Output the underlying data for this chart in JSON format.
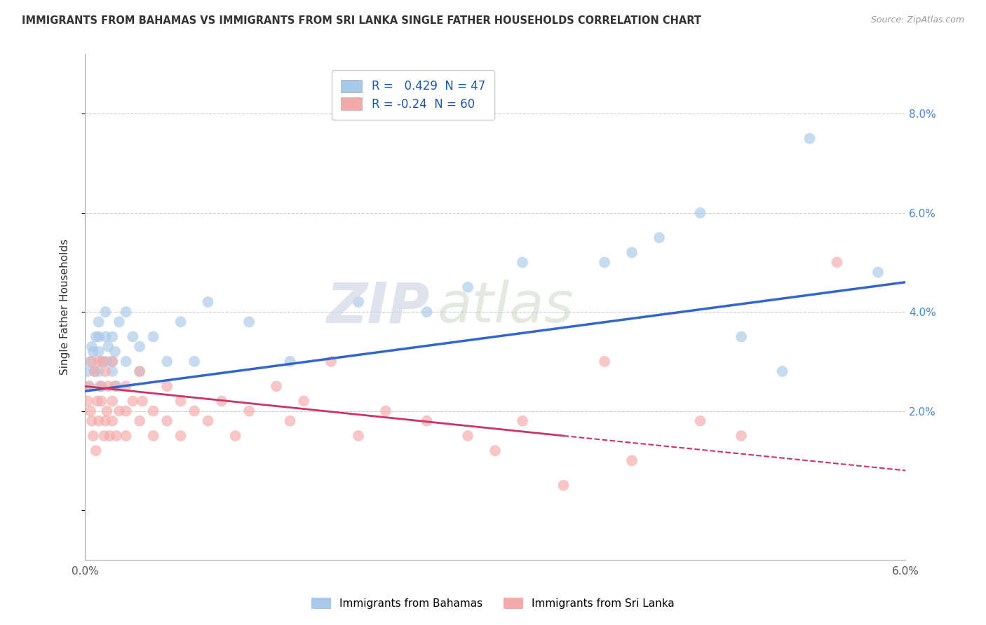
{
  "title": "IMMIGRANTS FROM BAHAMAS VS IMMIGRANTS FROM SRI LANKA SINGLE FATHER HOUSEHOLDS CORRELATION CHART",
  "source": "Source: ZipAtlas.com",
  "ylabel": "Single Father Households",
  "xlim": [
    0.0,
    0.06
  ],
  "ylim": [
    -0.01,
    0.092
  ],
  "xticks": [
    0.0,
    0.06
  ],
  "xticklabels": [
    "0.0%",
    "6.0%"
  ],
  "yticks": [
    0.0,
    0.02,
    0.04,
    0.06,
    0.08
  ],
  "yticklabels": [
    "",
    "2.0%",
    "4.0%",
    "6.0%",
    "8.0%"
  ],
  "blue_R": 0.429,
  "blue_N": 47,
  "pink_R": -0.24,
  "pink_N": 60,
  "blue_color": "#a8c8e8",
  "pink_color": "#f4aaaa",
  "blue_line_color": "#3366cc",
  "pink_line_color": "#cc3366",
  "legend1_label": "Immigrants from Bahamas",
  "legend2_label": "Immigrants from Sri Lanka",
  "watermark_zip": "ZIP",
  "watermark_atlas": "atlas",
  "blue_line_x0": 0.0,
  "blue_line_y0": 0.024,
  "blue_line_x1": 0.06,
  "blue_line_y1": 0.046,
  "pink_line_solid_x0": 0.0,
  "pink_line_solid_y0": 0.025,
  "pink_line_solid_x1": 0.035,
  "pink_line_solid_y1": 0.015,
  "pink_line_dash_x0": 0.035,
  "pink_line_dash_y0": 0.015,
  "pink_line_dash_x1": 0.06,
  "pink_line_dash_y1": 0.008,
  "blue_scatter_x": [
    0.0002,
    0.0003,
    0.0004,
    0.0005,
    0.0006,
    0.0007,
    0.0008,
    0.001,
    0.001,
    0.001,
    0.001,
    0.0012,
    0.0013,
    0.0015,
    0.0015,
    0.0016,
    0.0017,
    0.002,
    0.002,
    0.002,
    0.0022,
    0.0023,
    0.0025,
    0.003,
    0.003,
    0.0035,
    0.004,
    0.004,
    0.005,
    0.006,
    0.007,
    0.008,
    0.009,
    0.012,
    0.015,
    0.02,
    0.025,
    0.028,
    0.032,
    0.038,
    0.04,
    0.042,
    0.045,
    0.048,
    0.051,
    0.053,
    0.058
  ],
  "blue_scatter_y": [
    0.028,
    0.025,
    0.03,
    0.033,
    0.032,
    0.028,
    0.035,
    0.038,
    0.032,
    0.035,
    0.028,
    0.025,
    0.03,
    0.04,
    0.035,
    0.03,
    0.033,
    0.03,
    0.035,
    0.028,
    0.032,
    0.025,
    0.038,
    0.03,
    0.04,
    0.035,
    0.028,
    0.033,
    0.035,
    0.03,
    0.038,
    0.03,
    0.042,
    0.038,
    0.03,
    0.042,
    0.04,
    0.045,
    0.05,
    0.05,
    0.052,
    0.055,
    0.06,
    0.035,
    0.028,
    0.075,
    0.048
  ],
  "pink_scatter_x": [
    0.0002,
    0.0003,
    0.0004,
    0.0005,
    0.0005,
    0.0006,
    0.0007,
    0.0008,
    0.0009,
    0.001,
    0.001,
    0.0011,
    0.0012,
    0.0013,
    0.0014,
    0.0015,
    0.0015,
    0.0016,
    0.0017,
    0.0018,
    0.002,
    0.002,
    0.002,
    0.0022,
    0.0023,
    0.0025,
    0.003,
    0.003,
    0.003,
    0.0035,
    0.004,
    0.004,
    0.0042,
    0.005,
    0.005,
    0.006,
    0.006,
    0.007,
    0.007,
    0.008,
    0.009,
    0.01,
    0.011,
    0.012,
    0.014,
    0.015,
    0.016,
    0.018,
    0.02,
    0.022,
    0.025,
    0.028,
    0.03,
    0.032,
    0.035,
    0.038,
    0.04,
    0.045,
    0.048,
    0.055
  ],
  "pink_scatter_y": [
    0.022,
    0.025,
    0.02,
    0.03,
    0.018,
    0.015,
    0.028,
    0.012,
    0.022,
    0.03,
    0.018,
    0.025,
    0.022,
    0.03,
    0.015,
    0.018,
    0.028,
    0.02,
    0.025,
    0.015,
    0.03,
    0.022,
    0.018,
    0.025,
    0.015,
    0.02,
    0.025,
    0.02,
    0.015,
    0.022,
    0.028,
    0.018,
    0.022,
    0.02,
    0.015,
    0.025,
    0.018,
    0.022,
    0.015,
    0.02,
    0.018,
    0.022,
    0.015,
    0.02,
    0.025,
    0.018,
    0.022,
    0.03,
    0.015,
    0.02,
    0.018,
    0.015,
    0.012,
    0.018,
    0.005,
    0.03,
    0.01,
    0.018,
    0.015,
    0.05
  ]
}
